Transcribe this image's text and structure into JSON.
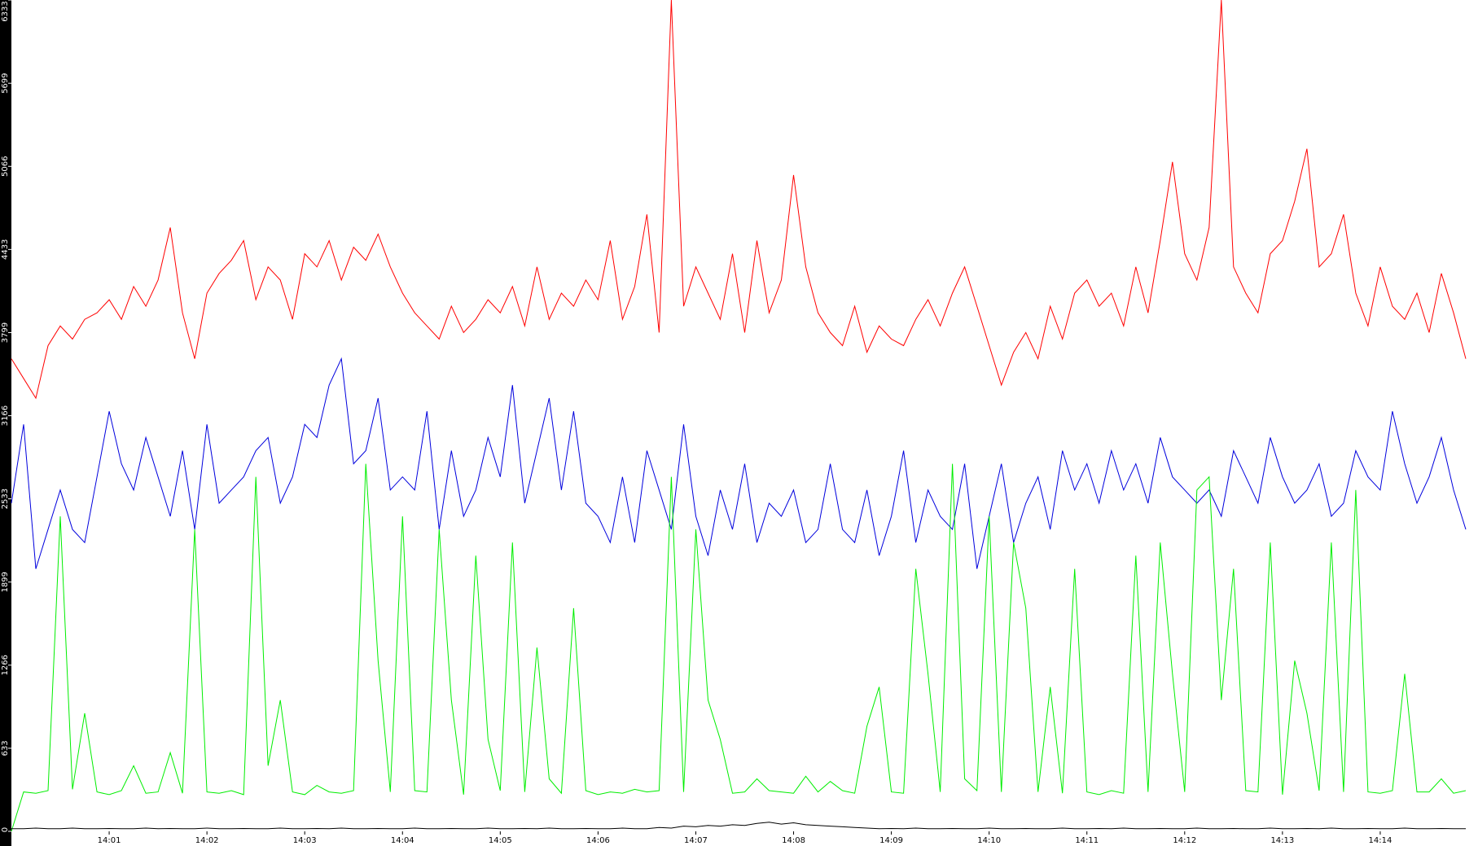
{
  "chart_data": {
    "type": "line",
    "ylim": [
      0,
      6333
    ],
    "yticks": [
      0,
      633,
      1266,
      1899,
      2533,
      3166,
      3799,
      4433,
      5066,
      5699,
      6333
    ],
    "categories": [
      null,
      null,
      null,
      null,
      null,
      null,
      null,
      null,
      "14:01",
      null,
      null,
      null,
      null,
      null,
      null,
      null,
      "14:02",
      null,
      null,
      null,
      null,
      null,
      null,
      null,
      "14:03",
      null,
      null,
      null,
      null,
      null,
      null,
      null,
      "14:04",
      null,
      null,
      null,
      null,
      null,
      null,
      null,
      "14:05",
      null,
      null,
      null,
      null,
      null,
      null,
      null,
      "14:06",
      null,
      null,
      null,
      null,
      null,
      null,
      null,
      "14:07",
      null,
      null,
      null,
      null,
      null,
      null,
      null,
      "14:08",
      null,
      null,
      null,
      null,
      null,
      null,
      null,
      "14:09",
      null,
      null,
      null,
      null,
      null,
      null,
      null,
      "14:10",
      null,
      null,
      null,
      null,
      null,
      null,
      null,
      "14:11",
      null,
      null,
      null,
      null,
      null,
      null,
      null,
      "14:12",
      null,
      null,
      null,
      null,
      null,
      null,
      null,
      "14:13",
      null,
      null,
      null,
      null,
      null,
      null,
      null,
      "14:14",
      null,
      null,
      null,
      null,
      null,
      null,
      null
    ],
    "series": [
      {
        "color": "#ff0000",
        "values": [
          3600,
          3450,
          3300,
          3700,
          3850,
          3750,
          3900,
          3950,
          4050,
          3900,
          4150,
          4000,
          4200,
          4600,
          3950,
          3600,
          4100,
          4250,
          4350,
          4500,
          4050,
          4300,
          4200,
          3900,
          4400,
          4300,
          4500,
          4200,
          4450,
          4350,
          4550,
          4300,
          4100,
          3950,
          3850,
          3750,
          4000,
          3800,
          3900,
          4050,
          3950,
          4150,
          3850,
          4300,
          3900,
          4100,
          4000,
          4200,
          4050,
          4500,
          3900,
          4150,
          4700,
          3800,
          6333,
          4000,
          4300,
          4100,
          3900,
          4400,
          3800,
          4500,
          3950,
          4200,
          5000,
          4300,
          3950,
          3800,
          3700,
          4000,
          3650,
          3850,
          3750,
          3700,
          3900,
          4050,
          3850,
          4100,
          4300,
          4000,
          3700,
          3400,
          3650,
          3800,
          3600,
          4000,
          3750,
          4100,
          4200,
          4000,
          4100,
          3850,
          4300,
          3950,
          4500,
          5100,
          4400,
          4200,
          4600,
          6333,
          4300,
          4100,
          3950,
          4400,
          4500,
          4800,
          5200,
          4300,
          4400,
          4700,
          4100,
          3850,
          4300,
          4000,
          3900,
          4100,
          3800,
          4250,
          3950,
          3600
        ]
      },
      {
        "color": "#0000dd",
        "values": [
          2500,
          3100,
          2000,
          2300,
          2600,
          2300,
          2200,
          2700,
          3200,
          2800,
          2600,
          3000,
          2700,
          2400,
          2900,
          2300,
          3100,
          2500,
          2600,
          2700,
          2900,
          3000,
          2500,
          2700,
          3100,
          3000,
          3400,
          3600,
          2800,
          2900,
          3300,
          2600,
          2700,
          2600,
          3200,
          2300,
          2900,
          2400,
          2600,
          3000,
          2700,
          3400,
          2500,
          2900,
          3300,
          2600,
          3200,
          2500,
          2400,
          2200,
          2700,
          2200,
          2900,
          2600,
          2300,
          3100,
          2400,
          2100,
          2600,
          2300,
          2800,
          2200,
          2500,
          2400,
          2600,
          2200,
          2300,
          2800,
          2300,
          2200,
          2600,
          2100,
          2400,
          2900,
          2200,
          2600,
          2400,
          2300,
          2800,
          2000,
          2400,
          2800,
          2200,
          2500,
          2700,
          2300,
          2900,
          2600,
          2800,
          2500,
          2900,
          2600,
          2800,
          2500,
          3000,
          2700,
          2600,
          2500,
          2600,
          2400,
          2900,
          2700,
          2500,
          3000,
          2700,
          2500,
          2600,
          2800,
          2400,
          2500,
          2900,
          2700,
          2600,
          3200,
          2800,
          2500,
          2700,
          3000,
          2600,
          2300
        ]
      },
      {
        "color": "#00ee00",
        "values": [
          0,
          300,
          290,
          310,
          2400,
          320,
          900,
          300,
          280,
          310,
          500,
          290,
          300,
          600,
          290,
          2300,
          300,
          290,
          310,
          280,
          2700,
          500,
          1000,
          300,
          280,
          350,
          300,
          290,
          310,
          2800,
          1300,
          300,
          2400,
          310,
          300,
          2300,
          1000,
          280,
          2100,
          700,
          310,
          2200,
          300,
          1400,
          400,
          290,
          1700,
          310,
          280,
          300,
          290,
          320,
          300,
          310,
          2700,
          300,
          2300,
          1000,
          700,
          290,
          300,
          400,
          310,
          300,
          290,
          420,
          300,
          380,
          310,
          290,
          800,
          1100,
          300,
          290,
          2000,
          1200,
          300,
          2800,
          400,
          310,
          2400,
          300,
          2200,
          1700,
          300,
          1100,
          290,
          2000,
          300,
          280,
          310,
          290,
          2100,
          300,
          2200,
          1200,
          300,
          2600,
          2700,
          1000,
          2000,
          310,
          300,
          2200,
          280,
          1300,
          900,
          310,
          2200,
          300,
          2600,
          300,
          290,
          310,
          1200,
          300,
          300,
          400,
          290,
          310
        ]
      },
      {
        "color": "#000000",
        "values": [
          20,
          20,
          25,
          20,
          20,
          25,
          20,
          20,
          22,
          20,
          20,
          25,
          20,
          22,
          20,
          20,
          25,
          20,
          20,
          22,
          20,
          20,
          25,
          20,
          20,
          22,
          20,
          25,
          20,
          20,
          22,
          20,
          20,
          25,
          20,
          20,
          22,
          20,
          20,
          25,
          20,
          20,
          22,
          20,
          25,
          20,
          20,
          22,
          20,
          20,
          25,
          20,
          20,
          30,
          25,
          40,
          35,
          45,
          40,
          50,
          45,
          60,
          70,
          55,
          65,
          50,
          45,
          40,
          35,
          30,
          25,
          20,
          22,
          20,
          25,
          20,
          20,
          22,
          20,
          20,
          25,
          20,
          20,
          22,
          20,
          20,
          25,
          20,
          20,
          22,
          20,
          25,
          20,
          20,
          22,
          20,
          20,
          25,
          20,
          20,
          22,
          20,
          20,
          25,
          20,
          20,
          22,
          20,
          25,
          20,
          20,
          22,
          20,
          20,
          25,
          20,
          20,
          22,
          20,
          20
        ]
      }
    ]
  }
}
